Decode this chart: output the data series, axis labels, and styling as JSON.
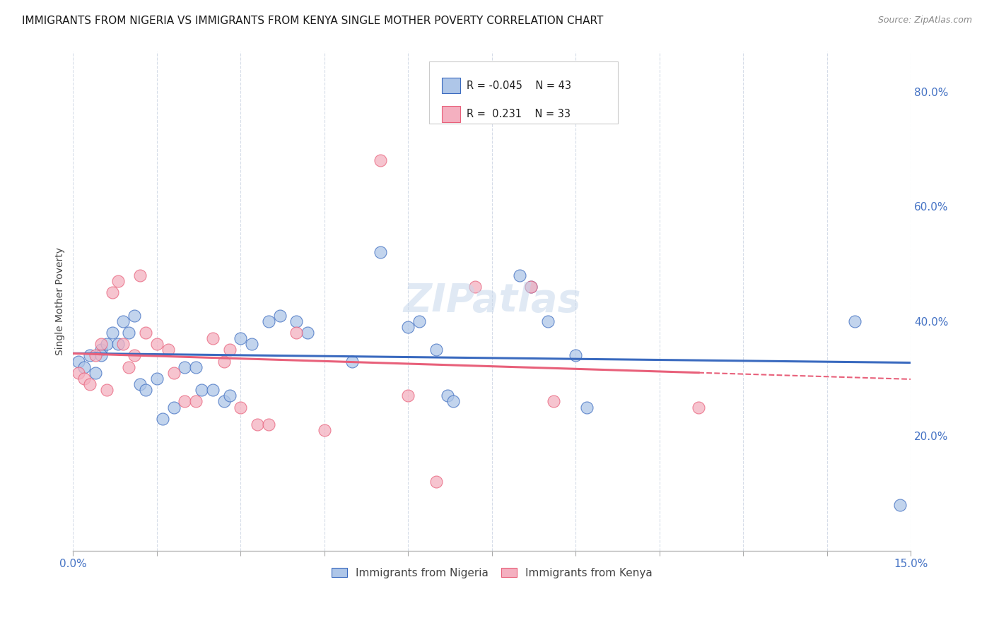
{
  "title": "IMMIGRANTS FROM NIGERIA VS IMMIGRANTS FROM KENYA SINGLE MOTHER POVERTY CORRELATION CHART",
  "source": "Source: ZipAtlas.com",
  "ylabel": "Single Mother Poverty",
  "ylabel_right_ticks": [
    "20.0%",
    "40.0%",
    "60.0%",
    "80.0%"
  ],
  "ylabel_right_vals": [
    0.2,
    0.4,
    0.6,
    0.8
  ],
  "legend_bottom": [
    "Immigrants from Nigeria",
    "Immigrants from Kenya"
  ],
  "watermark": "ZIPatlas",
  "nigeria_color": "#aec6e8",
  "kenya_color": "#f4b0c0",
  "nigeria_line_color": "#3a6abf",
  "kenya_line_color": "#e8607a",
  "nigeria_scatter": [
    [
      0.001,
      0.33
    ],
    [
      0.002,
      0.32
    ],
    [
      0.003,
      0.34
    ],
    [
      0.004,
      0.31
    ],
    [
      0.005,
      0.35
    ],
    [
      0.005,
      0.34
    ],
    [
      0.006,
      0.36
    ],
    [
      0.007,
      0.38
    ],
    [
      0.008,
      0.36
    ],
    [
      0.009,
      0.4
    ],
    [
      0.01,
      0.38
    ],
    [
      0.011,
      0.41
    ],
    [
      0.012,
      0.29
    ],
    [
      0.013,
      0.28
    ],
    [
      0.015,
      0.3
    ],
    [
      0.016,
      0.23
    ],
    [
      0.018,
      0.25
    ],
    [
      0.02,
      0.32
    ],
    [
      0.022,
      0.32
    ],
    [
      0.023,
      0.28
    ],
    [
      0.025,
      0.28
    ],
    [
      0.027,
      0.26
    ],
    [
      0.028,
      0.27
    ],
    [
      0.03,
      0.37
    ],
    [
      0.032,
      0.36
    ],
    [
      0.035,
      0.4
    ],
    [
      0.037,
      0.41
    ],
    [
      0.04,
      0.4
    ],
    [
      0.042,
      0.38
    ],
    [
      0.05,
      0.33
    ],
    [
      0.055,
      0.52
    ],
    [
      0.06,
      0.39
    ],
    [
      0.062,
      0.4
    ],
    [
      0.065,
      0.35
    ],
    [
      0.067,
      0.27
    ],
    [
      0.068,
      0.26
    ],
    [
      0.08,
      0.48
    ],
    [
      0.082,
      0.46
    ],
    [
      0.085,
      0.4
    ],
    [
      0.09,
      0.34
    ],
    [
      0.092,
      0.25
    ],
    [
      0.14,
      0.4
    ],
    [
      0.148,
      0.08
    ]
  ],
  "kenya_scatter": [
    [
      0.001,
      0.31
    ],
    [
      0.002,
      0.3
    ],
    [
      0.003,
      0.29
    ],
    [
      0.004,
      0.34
    ],
    [
      0.005,
      0.36
    ],
    [
      0.006,
      0.28
    ],
    [
      0.007,
      0.45
    ],
    [
      0.008,
      0.47
    ],
    [
      0.009,
      0.36
    ],
    [
      0.01,
      0.32
    ],
    [
      0.011,
      0.34
    ],
    [
      0.012,
      0.48
    ],
    [
      0.013,
      0.38
    ],
    [
      0.015,
      0.36
    ],
    [
      0.017,
      0.35
    ],
    [
      0.018,
      0.31
    ],
    [
      0.02,
      0.26
    ],
    [
      0.022,
      0.26
    ],
    [
      0.025,
      0.37
    ],
    [
      0.027,
      0.33
    ],
    [
      0.028,
      0.35
    ],
    [
      0.03,
      0.25
    ],
    [
      0.033,
      0.22
    ],
    [
      0.035,
      0.22
    ],
    [
      0.04,
      0.38
    ],
    [
      0.045,
      0.21
    ],
    [
      0.055,
      0.68
    ],
    [
      0.06,
      0.27
    ],
    [
      0.065,
      0.12
    ],
    [
      0.072,
      0.46
    ],
    [
      0.082,
      0.46
    ],
    [
      0.086,
      0.26
    ],
    [
      0.112,
      0.25
    ]
  ],
  "xmin": 0.0,
  "xmax": 0.15,
  "ymin": 0.0,
  "ymax": 0.87,
  "xticks": [
    0.0,
    0.015,
    0.03,
    0.045,
    0.06,
    0.075,
    0.09,
    0.105,
    0.12,
    0.135,
    0.15
  ],
  "grid_color": "#d5dce8",
  "background_color": "#ffffff",
  "tick_color": "#4472c4",
  "title_fontsize": 11,
  "source_fontsize": 9,
  "axis_label_fontsize": 10,
  "tick_fontsize": 11
}
